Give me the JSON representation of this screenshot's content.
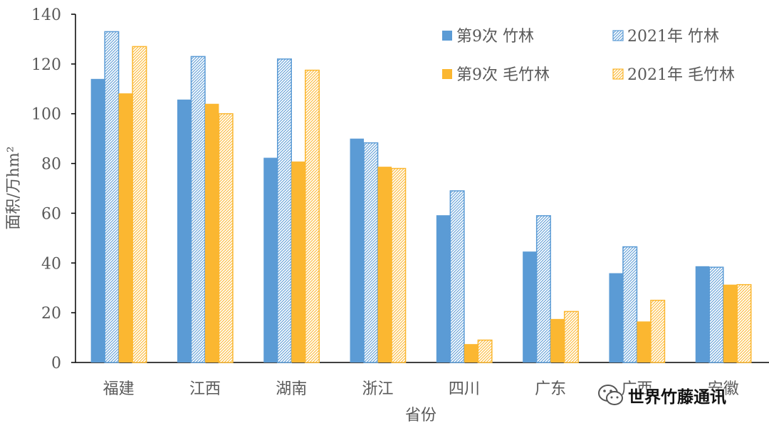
{
  "chart_data": {
    "type": "bar",
    "categories": [
      "福建",
      "江西",
      "湖南",
      "浙江",
      "四川",
      "广东",
      "广西",
      "安徽"
    ],
    "series": [
      {
        "name": "第9次 竹林",
        "values": [
          114,
          105.7,
          82.3,
          90,
          59.2,
          44.6,
          35.9,
          38.7
        ],
        "color": "#5b9bd5",
        "pattern": "solid"
      },
      {
        "name": "2021年 竹林",
        "values": [
          133,
          123,
          122,
          88.3,
          69,
          59,
          46.5,
          38.3
        ],
        "color": "#5b9bd5",
        "pattern": "hatched"
      },
      {
        "name": "第9次 毛竹林",
        "values": [
          108.2,
          104,
          80.8,
          78.7,
          7.4,
          17.5,
          16.5,
          31.3
        ],
        "color": "#fbb731",
        "pattern": "solid"
      },
      {
        "name": "2021年 毛竹林",
        "values": [
          127,
          100,
          117.5,
          78,
          9,
          20.5,
          25,
          31.3
        ],
        "color": "#fbb731",
        "pattern": "hatched"
      }
    ],
    "xlabel": "省份",
    "ylabel": "面积/万hm²",
    "ylim": [
      0,
      140
    ],
    "yticks": [
      0,
      20,
      40,
      60,
      80,
      100,
      120,
      140
    ],
    "grid": false,
    "legend_position": "top-right"
  },
  "watermark": {
    "text": "世界竹藤通讯",
    "icon": "wechat-icon"
  }
}
